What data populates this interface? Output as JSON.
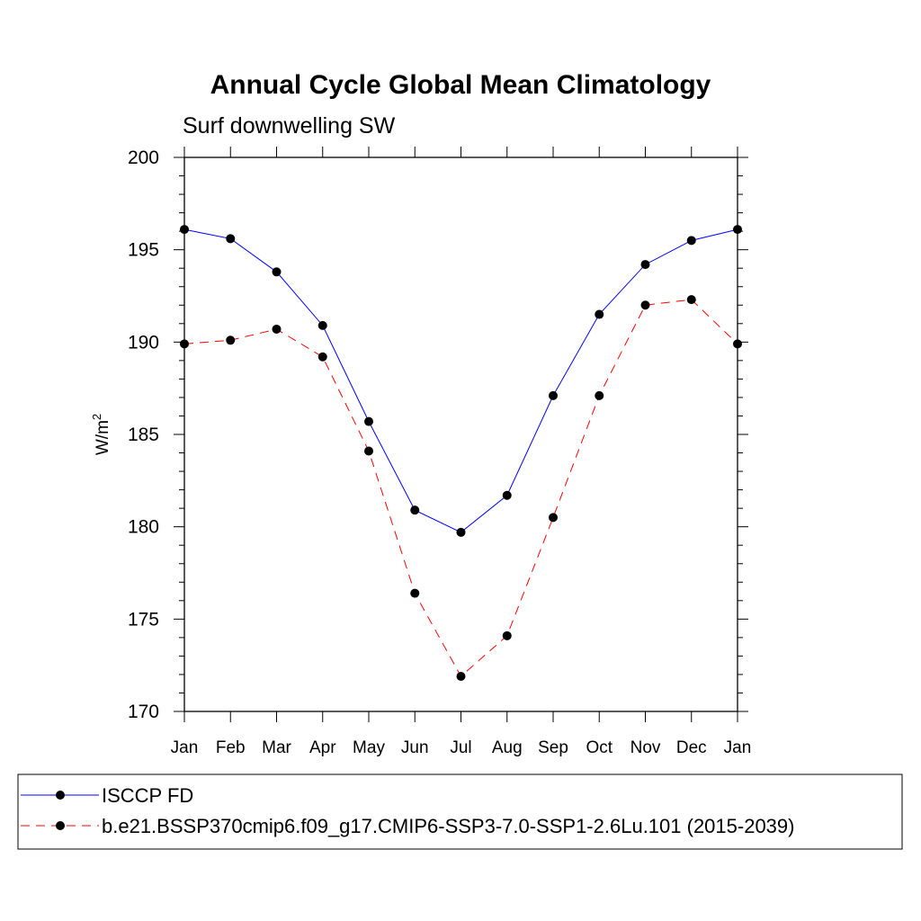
{
  "chart_data": {
    "type": "line",
    "title": "Annual Cycle Global Mean Climatology",
    "subtitle": "Surf downwelling SW",
    "ylabel": "W/m",
    "ylabel_superscript": "2",
    "xlabel": "",
    "categories": [
      "Jan",
      "Feb",
      "Mar",
      "Apr",
      "May",
      "Jun",
      "Jul",
      "Aug",
      "Sep",
      "Oct",
      "Nov",
      "Dec",
      "Jan"
    ],
    "ylim": [
      170,
      200
    ],
    "yticks": [
      170,
      175,
      180,
      185,
      190,
      195,
      200
    ],
    "grid": false,
    "legend_placement": "bottom",
    "series": [
      {
        "name": "ISCCP FD",
        "color": "#0000ff",
        "line_style": "solid",
        "marker": "circle",
        "values": [
          196.1,
          195.6,
          193.8,
          190.9,
          185.7,
          180.9,
          179.7,
          181.7,
          187.1,
          191.5,
          194.2,
          195.5,
          196.1
        ]
      },
      {
        "name": "b.e21.BSSP370cmip6.f09_g17.CMIP6-SSP3-7.0-SSP1-2.6Lu.101 (2015-2039)",
        "color": "#ff0000",
        "line_style": "dashed",
        "marker": "circle",
        "values": [
          189.9,
          190.1,
          190.7,
          189.2,
          184.1,
          176.4,
          171.9,
          174.1,
          180.5,
          187.1,
          192.0,
          192.3,
          189.9
        ]
      }
    ]
  }
}
